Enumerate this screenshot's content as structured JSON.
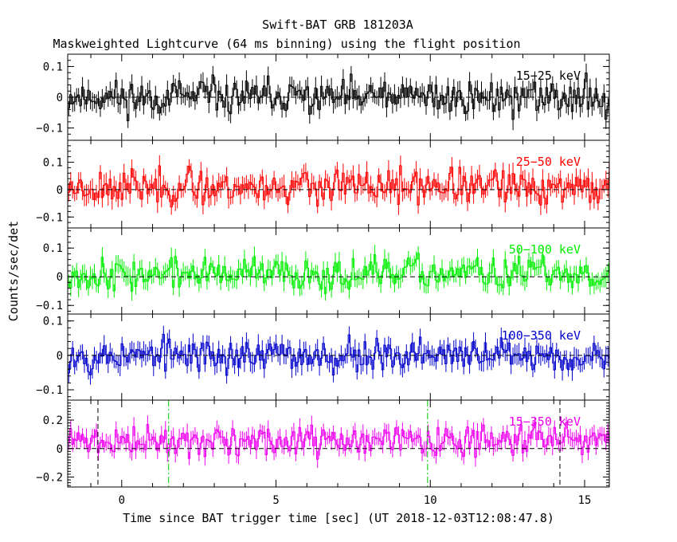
{
  "chart_data": {
    "type": "line",
    "title": "Swift-BAT GRB 181203A",
    "subtitle": "Maskweighted Lightcurve (64 ms binning) using the flight position",
    "xlabel": "Time since BAT trigger time [sec] (UT 2018-12-03T12:08:47.8)",
    "ylabel": "Counts/sec/det",
    "xlim": [
      -1.75,
      15.8
    ],
    "x_ticks": [
      0,
      5,
      10,
      15
    ],
    "bin_width_sec": 0.064,
    "panels": [
      {
        "name": "15-25 keV",
        "label": "15−25 keV",
        "color": "#000000",
        "ylim": [
          -0.14,
          0.14
        ],
        "yticks": [
          0.1,
          0,
          -0.1
        ],
        "yticklabels": [
          "0.1",
          "0",
          "−0.1"
        ],
        "noise_amplitude": 0.04,
        "baseline": 0.0,
        "seed": 11
      },
      {
        "name": "25-50 keV",
        "label": "25−50 keV",
        "color": "#ff0000",
        "ylim": [
          -0.14,
          0.18
        ],
        "yticks": [
          0.1,
          0,
          -0.1
        ],
        "yticklabels": [
          "0.1",
          "0",
          "−0.1"
        ],
        "noise_amplitude": 0.045,
        "baseline": 0.01,
        "seed": 23
      },
      {
        "name": "50-100 keV",
        "label": "50−100 keV",
        "color": "#00ee00",
        "ylim": [
          -0.13,
          0.17
        ],
        "yticks": [
          0.1,
          0,
          -0.1
        ],
        "yticklabels": [
          "0.1",
          "0",
          "−0.1"
        ],
        "noise_amplitude": 0.04,
        "baseline": 0.01,
        "seed": 37
      },
      {
        "name": "100-350 keV",
        "label": "100−350 keV",
        "color": "#0000cc",
        "ylim": [
          -0.13,
          0.12
        ],
        "yticks": [
          0.1,
          0,
          -0.1
        ],
        "yticklabels": [
          "0.1",
          "0",
          "−0.1"
        ],
        "noise_amplitude": 0.035,
        "baseline": 0.0,
        "seed": 53
      },
      {
        "name": "15-350 keV",
        "label": "15−350 keV",
        "color": "#ee00ee",
        "ylim": [
          -0.27,
          0.34
        ],
        "yticks": [
          0.2,
          0,
          -0.2
        ],
        "yticklabels": [
          "0.2",
          "0",
          "−0.2"
        ],
        "noise_amplitude": 0.075,
        "baseline": 0.05,
        "seed": 71
      }
    ],
    "markers": [
      {
        "t": -0.77,
        "style": "dashed",
        "color": "#000000"
      },
      {
        "t": 1.52,
        "style": "dashdot",
        "color": "#00cc00"
      },
      {
        "t": 9.91,
        "style": "dashdot",
        "color": "#00cc00"
      },
      {
        "t": 14.2,
        "style": "dashed",
        "color": "#000000"
      }
    ]
  }
}
